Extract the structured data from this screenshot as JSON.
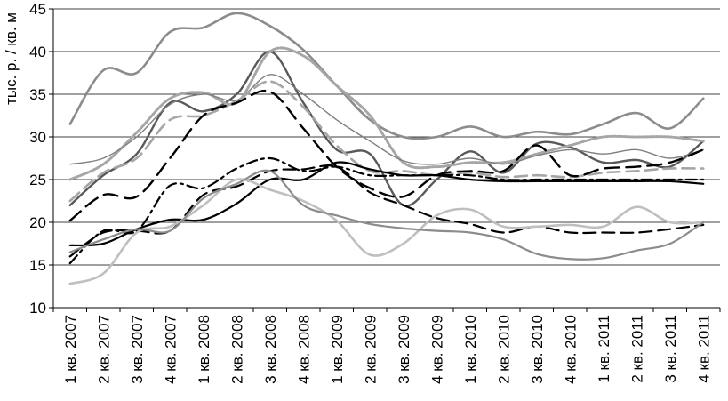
{
  "chart_data": {
    "type": "line",
    "ylabel": "тыс. р. / кв. м",
    "ylim": [
      10,
      45
    ],
    "yticks": [
      10,
      15,
      20,
      25,
      30,
      35,
      40,
      45
    ],
    "grid": "horizontal",
    "legend": "none",
    "categories": [
      "1 кв. 2007",
      "2 кв. 2007",
      "3 кв. 2007",
      "4 кв. 2007",
      "1 кв. 2008",
      "2 кв. 2008",
      "3 кв. 2008",
      "4 кв. 2008",
      "1 кв. 2009",
      "2 кв. 2009",
      "3 кв. 2009",
      "4 кв. 2009",
      "1 кв. 2010",
      "2 кв. 2010",
      "3 кв. 2010",
      "4 кв. 2010",
      "1 кв. 2011",
      "2 кв. 2011",
      "3 кв. 2011",
      "4 кв. 2011"
    ],
    "series": [
      {
        "color": "#8c8c8c",
        "dash": "",
        "width": 2.6,
        "values": [
          31.5,
          37.8,
          37.5,
          42.3,
          42.8,
          44.5,
          43.0,
          40.2,
          36.0,
          32.0,
          30.0,
          30.0,
          31.2,
          30.0,
          30.6,
          30.3,
          31.5,
          32.8,
          31.0,
          34.5
        ]
      },
      {
        "color": "#595959",
        "dash": "",
        "width": 2.4,
        "values": [
          22.0,
          25.5,
          28.0,
          34.0,
          33.0,
          35.0,
          40.0,
          34.0,
          28.5,
          28.0,
          22.0,
          25.0,
          28.3,
          25.8,
          29.2,
          28.8,
          27.0,
          27.3,
          26.5,
          29.5
        ]
      },
      {
        "color": "#a6a6a6",
        "dash": "2,2",
        "width": 3,
        "values": [
          25.0,
          26.8,
          30.5,
          34.5,
          35.2,
          34.0,
          40.0,
          39.5,
          36.0,
          32.5,
          27.0,
          26.5,
          27.0,
          27.0,
          28.0,
          29.0,
          30.0,
          30.0,
          30.0,
          29.5
        ]
      },
      {
        "color": "#7f7f7f",
        "dash": "",
        "width": 1.4,
        "values": [
          26.8,
          27.5,
          30.0,
          33.8,
          35.0,
          34.3,
          37.3,
          35.0,
          32.0,
          29.5,
          27.2,
          26.8,
          27.5,
          26.8,
          27.8,
          28.5,
          28.0,
          28.5,
          27.5,
          28.5
        ]
      },
      {
        "color": "#a6a6a6",
        "dash": "14,7",
        "width": 2.6,
        "values": [
          22.5,
          25.8,
          27.5,
          32.0,
          32.5,
          34.2,
          36.5,
          33.5,
          29.0,
          26.0,
          26.0,
          25.5,
          25.8,
          25.3,
          25.5,
          25.3,
          25.8,
          26.0,
          26.3,
          26.3
        ]
      },
      {
        "color": "#000000",
        "dash": "16,8",
        "width": 2.4,
        "values": [
          20.2,
          23.2,
          23.0,
          27.5,
          32.5,
          34.0,
          35.3,
          31.0,
          26.5,
          24.0,
          23.0,
          25.5,
          26.0,
          26.0,
          29.0,
          25.5,
          26.3,
          26.5,
          27.0,
          28.5
        ]
      },
      {
        "color": "#000000",
        "dash": "",
        "width": 2.2,
        "values": [
          17.3,
          17.5,
          19.2,
          20.3,
          20.3,
          22.2,
          25.0,
          25.0,
          27.0,
          26.2,
          25.5,
          25.5,
          25.0,
          24.8,
          24.8,
          24.8,
          24.8,
          24.8,
          24.8,
          24.5
        ]
      },
      {
        "color": "#000000",
        "dash": "12,5,3,5",
        "width": 2.2,
        "values": [
          15.2,
          19.0,
          19.0,
          24.3,
          24.0,
          26.3,
          27.5,
          26.0,
          26.5,
          25.5,
          25.5,
          25.5,
          25.5,
          25.0,
          25.0,
          25.0,
          25.0,
          25.0,
          25.0,
          25.0
        ]
      },
      {
        "color": "#000000",
        "dash": "14,7",
        "width": 2.2,
        "values": [
          16.0,
          18.8,
          19.0,
          19.0,
          23.2,
          24.2,
          26.0,
          26.2,
          26.5,
          23.5,
          22.0,
          20.5,
          19.8,
          18.8,
          19.5,
          18.8,
          18.8,
          18.8,
          19.2,
          19.7
        ]
      },
      {
        "color": "#bfbfbf",
        "dash": "",
        "width": 2.6,
        "values": [
          12.8,
          14.0,
          18.8,
          19.5,
          22.0,
          25.0,
          23.8,
          22.5,
          20.2,
          16.2,
          17.5,
          20.8,
          21.5,
          19.5,
          19.5,
          19.7,
          19.5,
          21.8,
          20.0,
          20.0
        ]
      },
      {
        "color": "#8c8c8c",
        "dash": "",
        "width": 2.2,
        "values": [
          16.5,
          18.0,
          19.2,
          19.0,
          22.8,
          24.5,
          26.0,
          22.0,
          20.8,
          19.8,
          19.3,
          19.0,
          18.8,
          18.0,
          16.3,
          15.7,
          15.8,
          16.7,
          17.5,
          20.0
        ]
      }
    ]
  }
}
